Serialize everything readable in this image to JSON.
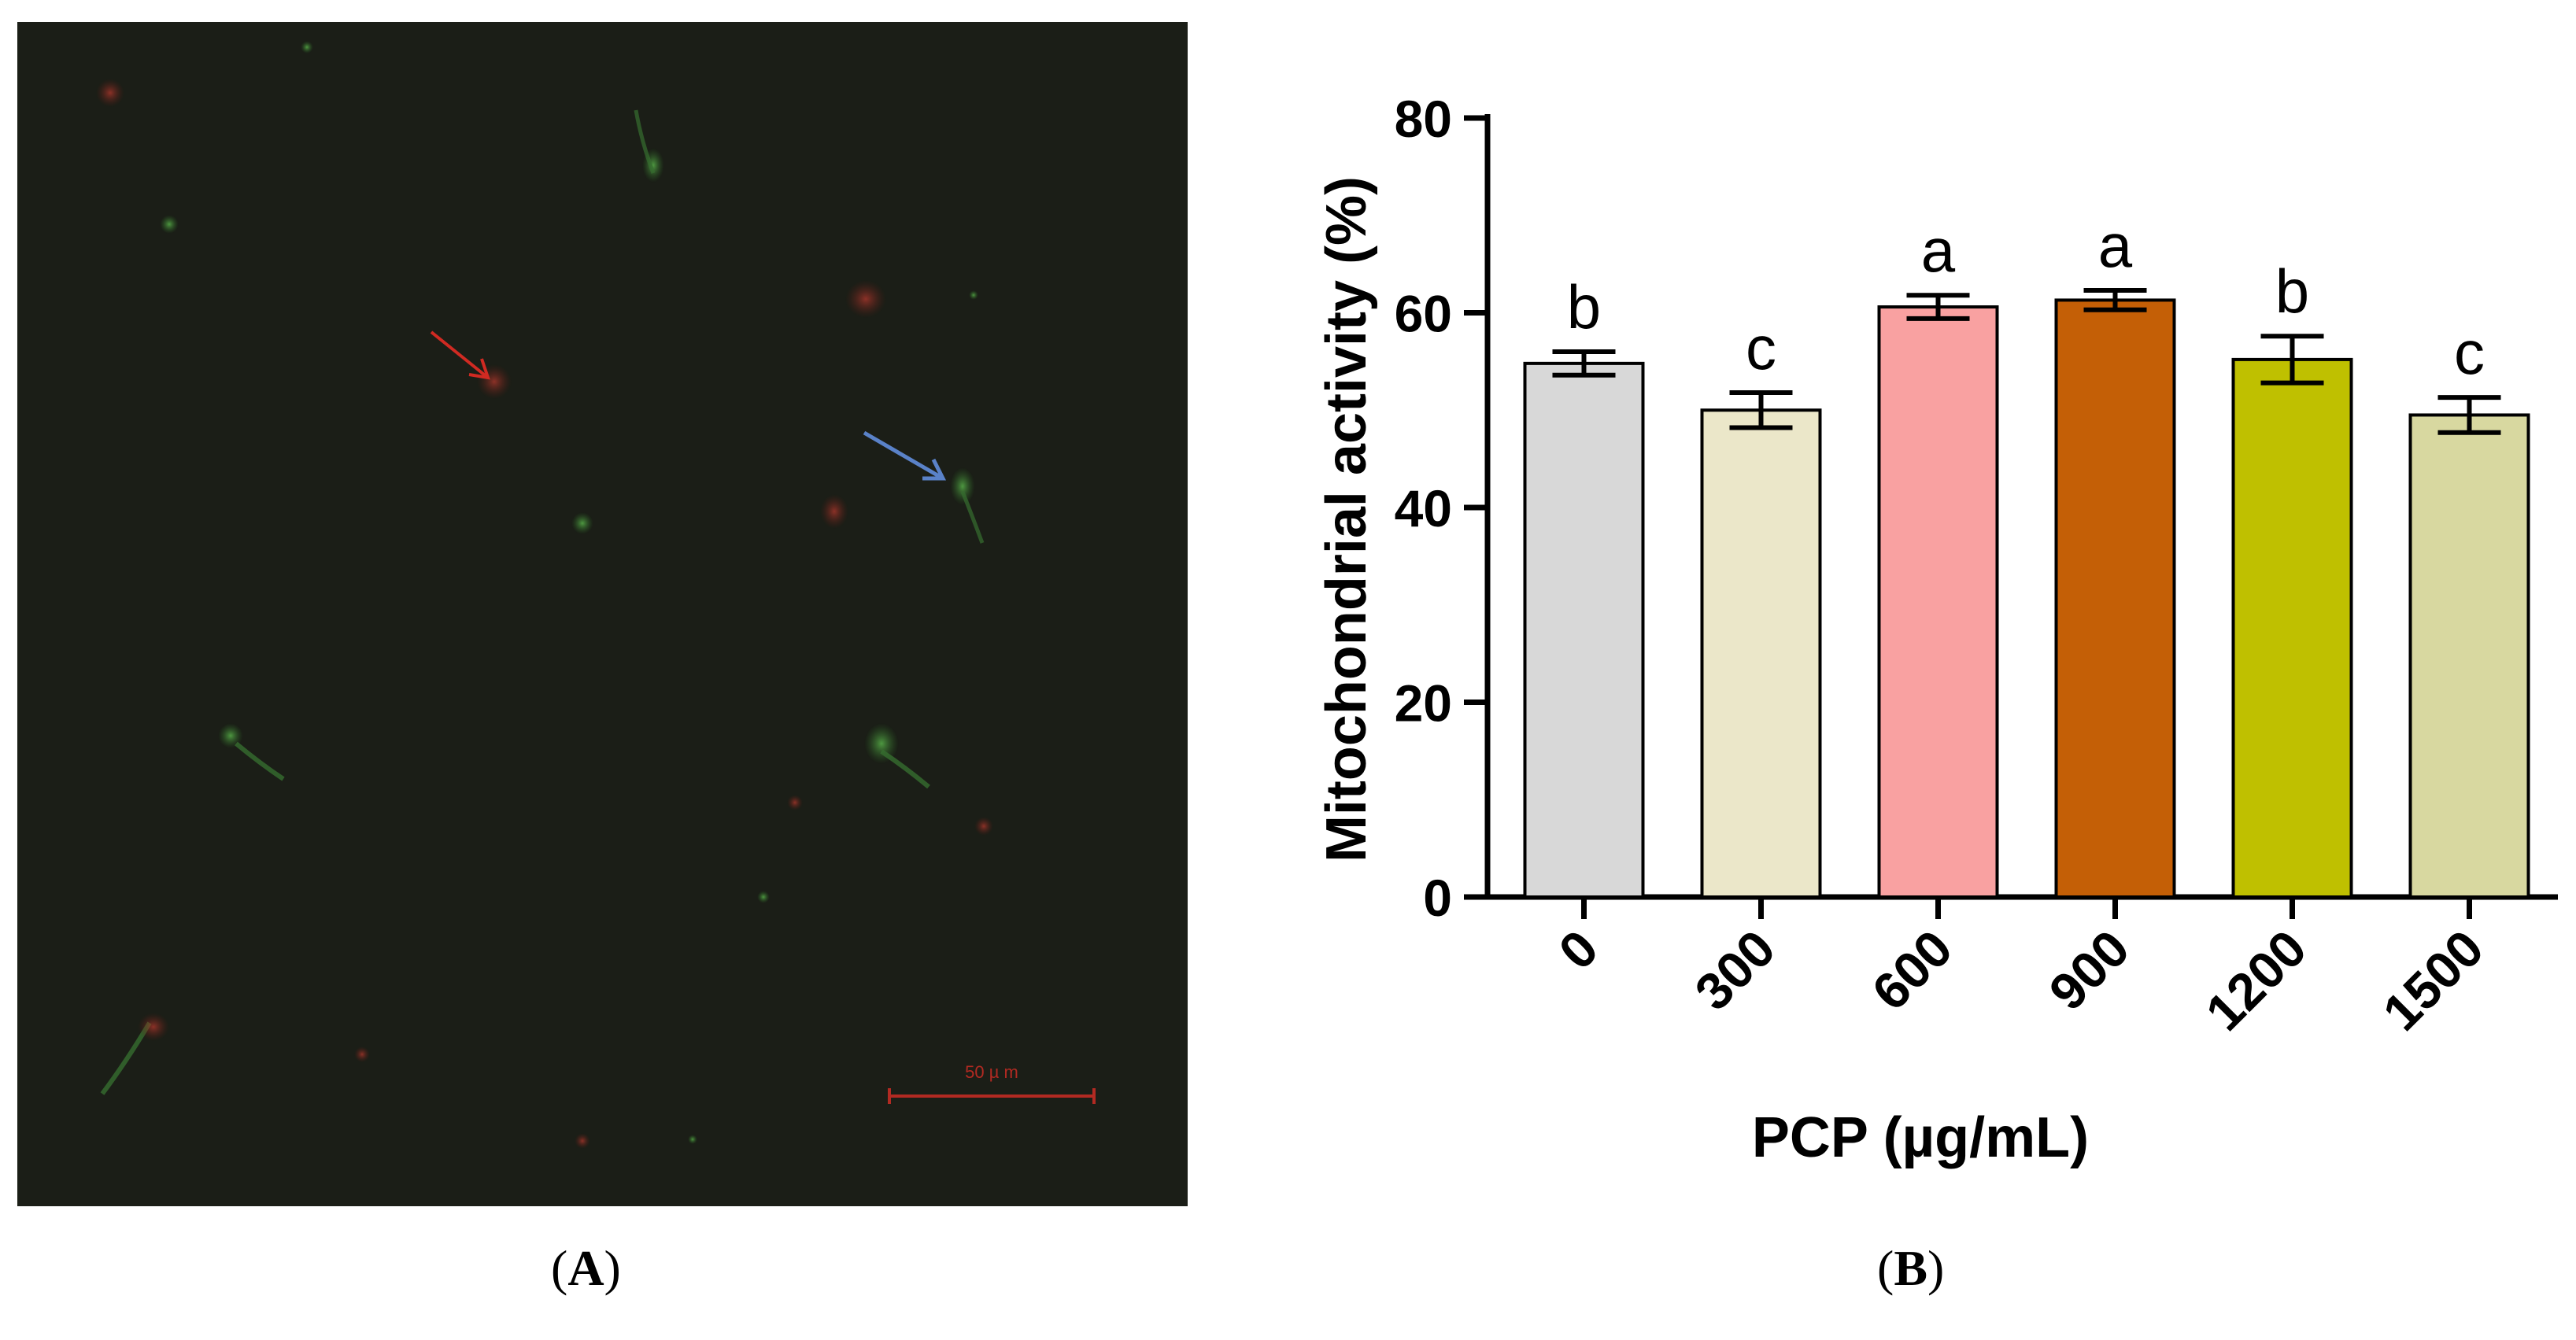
{
  "panels": {
    "left_label_open": "(",
    "left_label_letter": "A",
    "left_label_close": ")",
    "right_label_open": "(",
    "right_label_letter": "B",
    "right_label_close": ")"
  },
  "micrograph": {
    "scale_bar_text": "50 µ m",
    "background": "#1a1d16",
    "scale_color": "#b22a22",
    "red_arrow_color": "#d02a22",
    "blue_arrow_color": "#5a82c8"
  },
  "chart_data": {
    "type": "bar",
    "categories": [
      "0",
      "300",
      "600",
      "900",
      "1200",
      "1500"
    ],
    "values": [
      54.8,
      50.0,
      60.6,
      61.3,
      55.2,
      49.5
    ],
    "errors": [
      1.2,
      1.8,
      1.2,
      1.0,
      2.4,
      1.8
    ],
    "letters": [
      "b",
      "c",
      "a",
      "a",
      "b",
      "c"
    ],
    "colors": [
      "#d8d8d8",
      "#ebe7c9",
      "#f9a1a1",
      "#c45f06",
      "#bfc000",
      "#d8d8a0"
    ],
    "ylabel": "Mitochondrial activity (%)",
    "xlabel": "PCP (µg/mL)",
    "ylim": [
      0,
      80
    ],
    "yticks": [
      0,
      20,
      40,
      60,
      80
    ],
    "grid": false
  }
}
